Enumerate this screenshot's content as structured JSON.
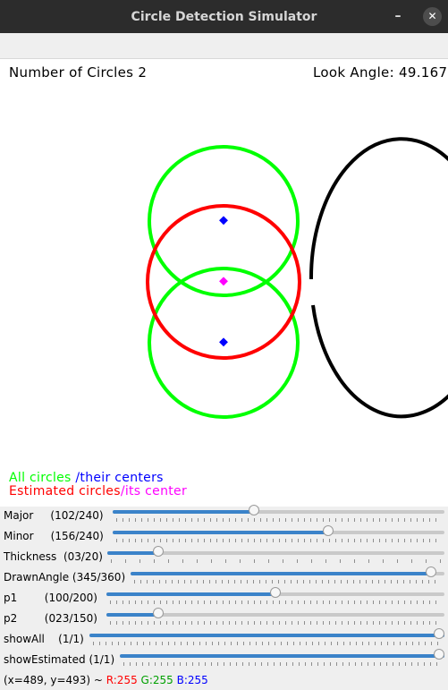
{
  "window": {
    "title": "Circle Detection Simulator",
    "minimize_glyph": "–",
    "close_glyph": "✕"
  },
  "canvas": {
    "num_circles_text": "Number of Circles 2",
    "look_angle_text": "Look Angle: 49.167",
    "legend": {
      "all_circles": "All circles",
      "their_centers": "/their centers",
      "estimated_circles": "Estimated circles",
      "its_center": "/its center"
    },
    "colors": {
      "all_circles": "#00ff00",
      "centers": "#0000ff",
      "estimated": "#ff0000",
      "estimated_center": "#ff00ff",
      "ellipse": "#000000"
    }
  },
  "sliders": [
    {
      "label": "Major     (102/240)",
      "value": 102,
      "max": 240
    },
    {
      "label": "Minor     (156/240)",
      "value": 156,
      "max": 240
    },
    {
      "label": "Thickness  (03/20)",
      "value": 3,
      "max": 20
    },
    {
      "label": "DrawnAngle (345/360)",
      "value": 345,
      "max": 360
    },
    {
      "label": "p1        (100/200)",
      "value": 100,
      "max": 200
    },
    {
      "label": "p2        (023/150)",
      "value": 23,
      "max": 150
    },
    {
      "label": "showAll    (1/1)",
      "value": 1,
      "max": 1
    },
    {
      "label": "showEstimated (1/1)",
      "value": 1,
      "max": 1
    }
  ],
  "status": {
    "coords": "(x=489, y=493) ~ ",
    "r": "R:255",
    "g": "G:255",
    "b": "B:255",
    "r_color": "#ff0000",
    "g_color": "#00a000",
    "b_color": "#0000ff"
  }
}
